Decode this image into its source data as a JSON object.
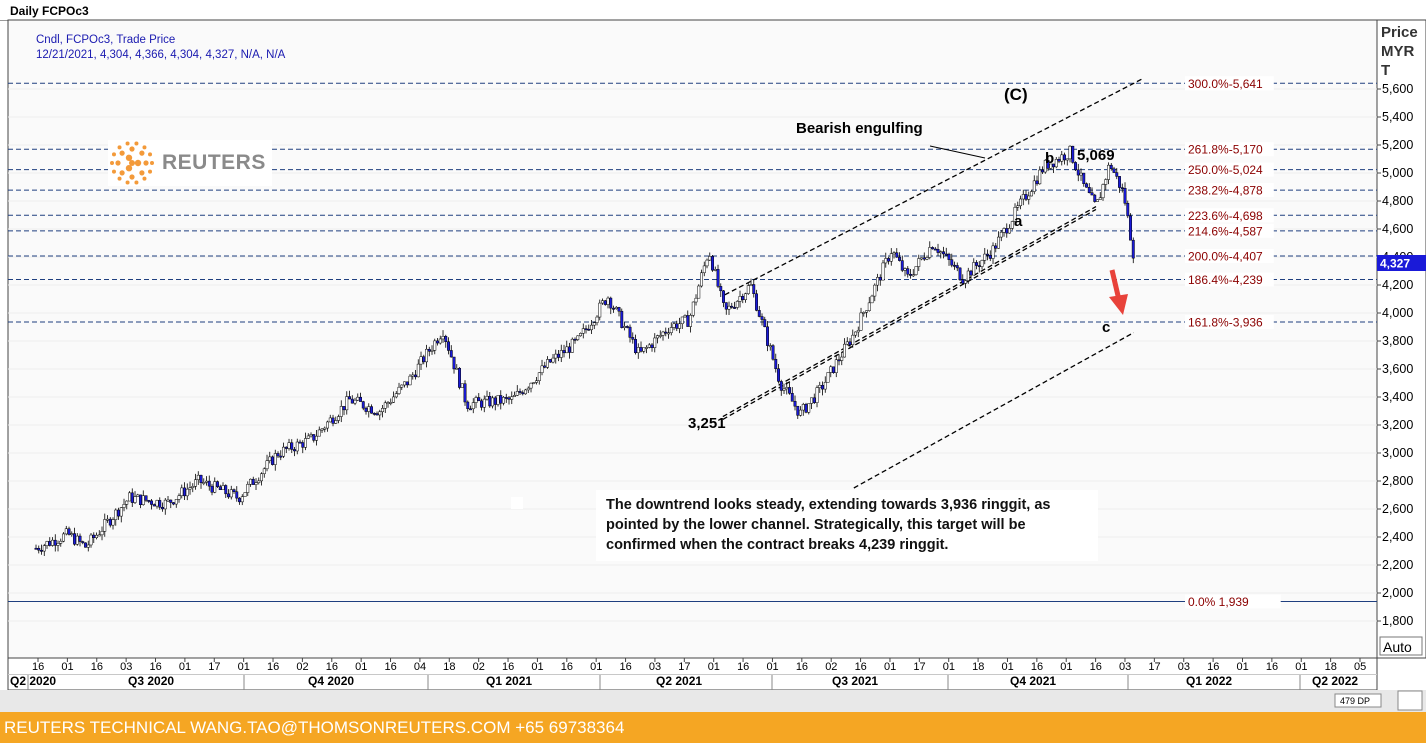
{
  "window_title": "Daily FCPOc3",
  "legend": {
    "line1": "Cndl, FCPOc3, Trade Price",
    "line2": "12/21/2021, 4,304, 4,366, 4,304, 4,327, N/A, N/A"
  },
  "axis": {
    "price_title": "Price",
    "currency_line1": "MYR",
    "currency_line2": "T",
    "last_price_label": "4,327",
    "auto_button": "Auto",
    "scroll_badge": "479 DP"
  },
  "logo_text": "REUTERS",
  "annotation_text": "The downtrend looks steady, extending towards 3,936 ringgit, as pointed by the lower channel. Strategically, this target will be confirmed when the contract breaks 4,239 ringgit.",
  "footer_text": "REUTERS TECHNICAL  WANG.TAO@THOMSONREUTERS.COM  +65 69738364",
  "colors": {
    "candle_up": "#ffffff",
    "candle_down": "#1a1ad8",
    "fib_text": "#8b0000",
    "fib_line": "#1f3f7f",
    "footer_bg": "#f5a623",
    "arrow": "#e8423a"
  },
  "icons": [
    "reuters-dot-logo-icon",
    "down-arrow-icon"
  ],
  "chart_data": {
    "type": "candlestick",
    "instrument": "FCPOc3",
    "timeframe": "Daily",
    "ylim": [
      1800,
      5750
    ],
    "y_ticks": [
      1800,
      2000,
      2200,
      2400,
      2600,
      2800,
      3000,
      3200,
      3400,
      3600,
      3800,
      4000,
      4200,
      4400,
      4600,
      4800,
      5000,
      5200,
      5400,
      5600
    ],
    "y_tick_labels": [
      "1,800",
      "2,000",
      "2,200",
      "2,400",
      "2,600",
      "2,800",
      "3,000",
      "3,200",
      "3,400",
      "3,600",
      "3,800",
      "4,000",
      "4,200",
      "4,400",
      "4,600",
      "4,800",
      "5,000",
      "5,200",
      "5,400",
      "5,600"
    ],
    "x_day_labels": [
      "16",
      "01",
      "16",
      "03",
      "16",
      "01",
      "17",
      "01",
      "16",
      "02",
      "16",
      "01",
      "16",
      "04",
      "18",
      "02",
      "16",
      "01",
      "16",
      "01",
      "16",
      "03",
      "17",
      "01",
      "16",
      "01",
      "16",
      "02",
      "16",
      "01",
      "17",
      "01",
      "18",
      "01",
      "16",
      "01",
      "16",
      "03",
      "17",
      "03",
      "16",
      "01",
      "16",
      "01",
      "18",
      "05"
    ],
    "x_quarter_labels": [
      "Q2 2020",
      "Q3 2020",
      "Q4 2020",
      "Q1 2021",
      "Q2 2021",
      "Q3 2021",
      "Q4 2021",
      "Q1 2022",
      "Q2 2022"
    ],
    "fib_levels": [
      {
        "label": "300.0%",
        "value": 5641,
        "value_label": "5,641"
      },
      {
        "label": "261.8%",
        "value": 5170,
        "value_label": "5,170"
      },
      {
        "label": "250.0%",
        "value": 5024,
        "value_label": "5,024"
      },
      {
        "label": "238.2%",
        "value": 4878,
        "value_label": "4,878"
      },
      {
        "label": "223.6%",
        "value": 4698,
        "value_label": "4,698"
      },
      {
        "label": "214.6%",
        "value": 4587,
        "value_label": "4,587"
      },
      {
        "label": "200.0%",
        "value": 4407,
        "value_label": "4,407"
      },
      {
        "label": "186.4%",
        "value": 4239,
        "value_label": "4,239"
      },
      {
        "label": "161.8%",
        "value": 3936,
        "value_label": "3,936"
      },
      {
        "label": "0.0%",
        "value": 1939,
        "value_label": "1,939"
      }
    ],
    "key_points": [
      {
        "label": "3,251",
        "date": "2021-05-25",
        "value": 3251
      },
      {
        "label": "5,069",
        "date": "2021-11-10",
        "value": 5069
      }
    ],
    "wave_labels": [
      "(C)",
      "a",
      "b",
      "c"
    ],
    "pattern_note": "Bearish engulfing",
    "channel_lines": [
      {
        "start": {
          "date": "2021-05-28",
          "value": 4130
        },
        "end": {
          "date": "2021-12-24",
          "value": 5670
        }
      },
      {
        "start": {
          "date": "2021-05-27",
          "value": 3240
        },
        "end": {
          "date": "2021-12-01",
          "value": 4740
        }
      },
      {
        "start": {
          "date": "2021-05-27",
          "value": 3260
        },
        "end": {
          "date": "2021-12-01",
          "value": 4760
        }
      },
      {
        "start": {
          "date": "2021-08-01",
          "value": 2750
        },
        "end": {
          "date": "2021-12-20",
          "value": 3860
        }
      }
    ],
    "price_path": [
      {
        "date": "2020-06-15",
        "value": 2320
      },
      {
        "date": "2020-07-01",
        "value": 2420
      },
      {
        "date": "2020-07-10",
        "value": 2330
      },
      {
        "date": "2020-08-01",
        "value": 2680
      },
      {
        "date": "2020-08-20",
        "value": 2640
      },
      {
        "date": "2020-09-05",
        "value": 2800
      },
      {
        "date": "2020-09-25",
        "value": 2680
      },
      {
        "date": "2020-10-15",
        "value": 3000
      },
      {
        "date": "2020-11-01",
        "value": 3100
      },
      {
        "date": "2020-11-20",
        "value": 3380
      },
      {
        "date": "2020-12-05",
        "value": 3300
      },
      {
        "date": "2020-12-20",
        "value": 3520
      },
      {
        "date": "2021-01-06",
        "value": 3880
      },
      {
        "date": "2021-01-18",
        "value": 3350
      },
      {
        "date": "2021-02-10",
        "value": 3380
      },
      {
        "date": "2021-03-01",
        "value": 3650
      },
      {
        "date": "2021-03-15",
        "value": 3800
      },
      {
        "date": "2021-03-30",
        "value": 4120
      },
      {
        "date": "2021-04-15",
        "value": 3700
      },
      {
        "date": "2021-04-30",
        "value": 3900
      },
      {
        "date": "2021-05-10",
        "value": 3950
      },
      {
        "date": "2021-05-20",
        "value": 4450
      },
      {
        "date": "2021-05-28",
        "value": 4000
      },
      {
        "date": "2021-06-10",
        "value": 4200
      },
      {
        "date": "2021-06-25",
        "value": 3500
      },
      {
        "date": "2021-07-05",
        "value": 3280
      },
      {
        "date": "2021-07-15",
        "value": 3450
      },
      {
        "date": "2021-08-01",
        "value": 3850
      },
      {
        "date": "2021-08-20",
        "value": 4450
      },
      {
        "date": "2021-08-28",
        "value": 4250
      },
      {
        "date": "2021-09-10",
        "value": 4500
      },
      {
        "date": "2021-09-25",
        "value": 4250
      },
      {
        "date": "2021-10-10",
        "value": 4450
      },
      {
        "date": "2021-10-25",
        "value": 4800
      },
      {
        "date": "2021-11-05",
        "value": 5050
      },
      {
        "date": "2021-11-18",
        "value": 5150
      },
      {
        "date": "2021-11-25",
        "value": 4900
      },
      {
        "date": "2021-12-01",
        "value": 4750
      },
      {
        "date": "2021-12-08",
        "value": 5069
      },
      {
        "date": "2021-12-15",
        "value": 4850
      },
      {
        "date": "2021-12-21",
        "value": 4327
      }
    ]
  }
}
